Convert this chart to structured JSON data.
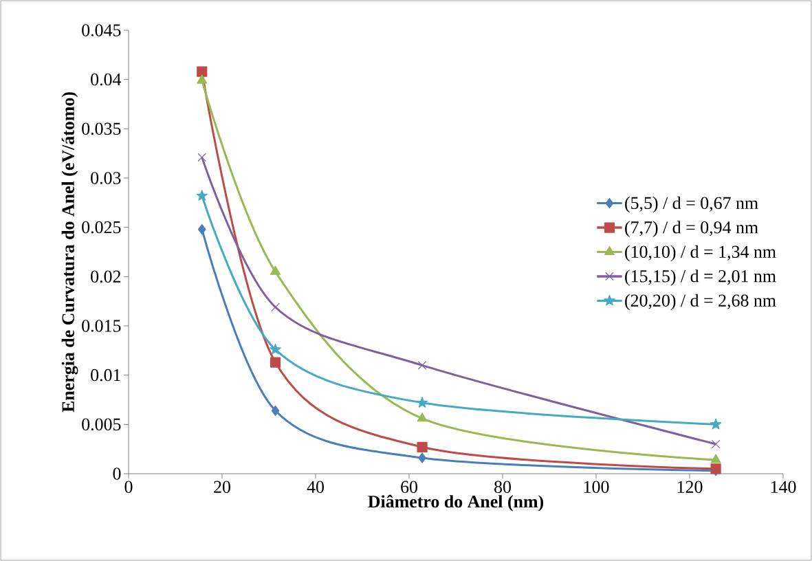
{
  "chart_data": {
    "type": "line",
    "xlabel": "Diâmetro do Anel (nm)",
    "ylabel": "Energia de Curvatura do Anel (eV/átomo)",
    "x": [
      15.7,
      31.4,
      62.8,
      125.6
    ],
    "series": [
      {
        "name": "(5,5) / d = 0,67 nm",
        "color": "#4a7ebb",
        "marker": "diamond",
        "values": [
          0.0248,
          0.0064,
          0.0016,
          0.0003
        ]
      },
      {
        "name": "(7,7) / d = 0,94 nm",
        "color": "#be4b48",
        "marker": "square",
        "values": [
          0.0408,
          0.0113,
          0.0027,
          0.0005
        ]
      },
      {
        "name": "(10,10) / d = 1,34 nm",
        "color": "#98b954",
        "marker": "triangle",
        "values": [
          0.0399,
          0.0205,
          0.0056,
          0.0014
        ]
      },
      {
        "name": "(15,15) / d = 2,01 nm",
        "color": "#7d60a0",
        "marker": "cross",
        "values": [
          0.0321,
          0.0169,
          0.011,
          0.003
        ]
      },
      {
        "name": "(20,20) / d = 2,68 nm",
        "color": "#46aac5",
        "marker": "star",
        "values": [
          0.0282,
          0.0126,
          0.0072,
          0.005
        ]
      }
    ],
    "xlim": [
      0,
      140
    ],
    "xticks": [
      0,
      20,
      40,
      60,
      80,
      100,
      120,
      140
    ],
    "ylim": [
      0,
      0.045
    ],
    "yticks": [
      0,
      0.005,
      0.01,
      0.015,
      0.02,
      0.025,
      0.03,
      0.035,
      0.04,
      0.045
    ],
    "grid": false,
    "legend": "right",
    "line_style": "solid"
  }
}
